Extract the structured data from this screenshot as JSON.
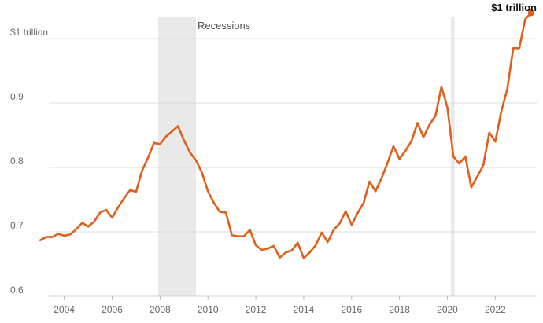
{
  "chart_data": {
    "type": "line",
    "title": "",
    "xlabel": "",
    "ylabel": "",
    "xlim": [
      2002.5,
      2023.7
    ],
    "ylim": [
      0.6,
      1.05
    ],
    "y_ticks": [
      {
        "value": 0.6,
        "label": "0.6"
      },
      {
        "value": 0.7,
        "label": "0.7"
      },
      {
        "value": 0.8,
        "label": "0.8"
      },
      {
        "value": 0.9,
        "label": "0.9"
      },
      {
        "value": 1.0,
        "label": "$1 trillion"
      }
    ],
    "x_ticks": [
      {
        "value": 2004,
        "label": "2004"
      },
      {
        "value": 2006,
        "label": "2006"
      },
      {
        "value": 2008,
        "label": "2008"
      },
      {
        "value": 2010,
        "label": "2010"
      },
      {
        "value": 2012,
        "label": "2012"
      },
      {
        "value": 2014,
        "label": "2014"
      },
      {
        "value": 2016,
        "label": "2016"
      },
      {
        "value": 2018,
        "label": "2018"
      },
      {
        "value": 2020,
        "label": "2020"
      },
      {
        "value": 2022,
        "label": "2022"
      }
    ],
    "grid": true,
    "recessions": [
      {
        "start": 2007.92,
        "end": 2009.5
      },
      {
        "start": 2020.15,
        "end": 2020.3
      }
    ],
    "recession_label": "Recessions",
    "end_label": "$1 trillion",
    "colors": {
      "line": "#e0601b",
      "recession": "#e9e9e9",
      "grid": "#dcdcdc"
    },
    "series": [
      {
        "x": [
          2003.0,
          2003.25,
          2003.5,
          2003.75,
          2004.0,
          2004.25,
          2004.5,
          2004.75,
          2005.0,
          2005.25,
          2005.5,
          2005.75,
          2006.0,
          2006.25,
          2006.5,
          2006.75,
          2007.0,
          2007.25,
          2007.5,
          2007.75,
          2008.0,
          2008.25,
          2008.5,
          2008.75,
          2009.0,
          2009.25,
          2009.5,
          2009.75,
          2010.0,
          2010.25,
          2010.5,
          2010.75,
          2011.0,
          2011.25,
          2011.5,
          2011.75,
          2012.0,
          2012.25,
          2012.5,
          2012.75,
          2013.0,
          2013.25,
          2013.5,
          2013.75,
          2014.0,
          2014.25,
          2014.5,
          2014.75,
          2015.0,
          2015.25,
          2015.5,
          2015.75,
          2016.0,
          2016.25,
          2016.5,
          2016.75,
          2017.0,
          2017.25,
          2017.5,
          2017.75,
          2018.0,
          2018.25,
          2018.5,
          2018.75,
          2019.0,
          2019.25,
          2019.5,
          2019.75,
          2020.0,
          2020.25,
          2020.5,
          2020.75,
          2021.0,
          2021.25,
          2021.5,
          2021.75,
          2022.0,
          2022.25,
          2022.5,
          2022.75,
          2023.0,
          2023.25,
          2023.5
        ],
        "values": [
          0.687,
          0.692,
          0.692,
          0.697,
          0.694,
          0.696,
          0.704,
          0.714,
          0.708,
          0.716,
          0.73,
          0.734,
          0.722,
          0.738,
          0.752,
          0.765,
          0.762,
          0.795,
          0.815,
          0.838,
          0.836,
          0.848,
          0.856,
          0.864,
          0.842,
          0.823,
          0.811,
          0.792,
          0.763,
          0.745,
          0.731,
          0.73,
          0.695,
          0.693,
          0.693,
          0.703,
          0.679,
          0.672,
          0.674,
          0.678,
          0.66,
          0.668,
          0.671,
          0.683,
          0.659,
          0.668,
          0.679,
          0.699,
          0.684,
          0.703,
          0.713,
          0.732,
          0.711,
          0.729,
          0.745,
          0.778,
          0.763,
          0.783,
          0.807,
          0.833,
          0.813,
          0.826,
          0.841,
          0.869,
          0.847,
          0.866,
          0.88,
          0.925,
          0.893,
          0.817,
          0.806,
          0.817,
          0.769,
          0.786,
          0.803,
          0.854,
          0.84,
          0.887,
          0.922,
          0.985,
          0.985,
          1.03,
          1.04
        ]
      }
    ]
  }
}
